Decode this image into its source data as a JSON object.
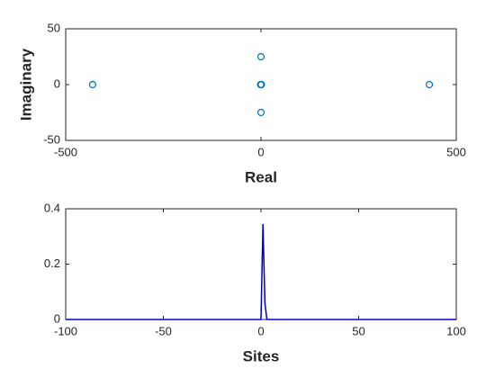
{
  "chart_data": [
    {
      "type": "scatter",
      "xlabel": "Real",
      "ylabel": "Imaginary",
      "x": [
        -431,
        431,
        0,
        0,
        -1,
        0,
        1
      ],
      "y": [
        0,
        0,
        25,
        -25,
        0,
        0,
        0
      ],
      "color": "#0072bd",
      "xlim": [
        -500,
        500
      ],
      "ylim": [
        -50,
        50
      ],
      "xticks": [
        -500,
        0,
        500
      ],
      "yticks": [
        -50,
        0,
        50
      ]
    },
    {
      "type": "line",
      "xlabel": "Sites",
      "x": [
        -100,
        0,
        1,
        2,
        3,
        100
      ],
      "values": [
        0,
        0,
        0.345,
        0.06,
        0,
        0
      ],
      "color": "#0000cd",
      "xlim": [
        -100,
        100
      ],
      "ylim": [
        0,
        0.4
      ],
      "xticks": [
        -100,
        -50,
        0,
        50,
        100
      ],
      "yticks": [
        0,
        0.2,
        0.4
      ]
    }
  ]
}
